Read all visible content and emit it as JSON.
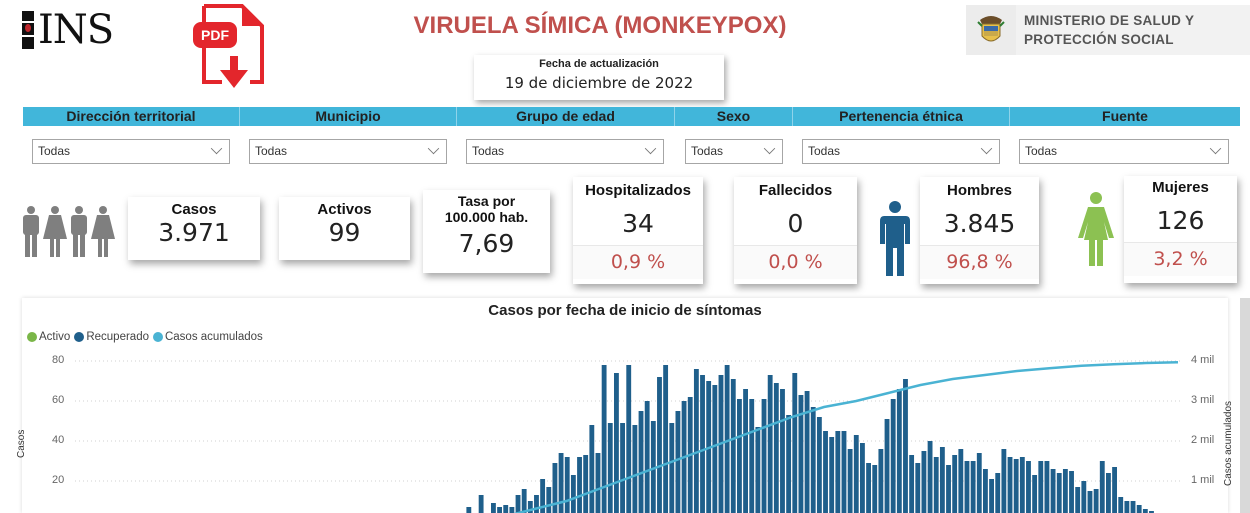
{
  "header": {
    "logo_text": "INS",
    "title": "VIRUELA SÍMICA (MONKEYPOX)",
    "pdf_label": "PDF",
    "update_label": "Fecha de actualización",
    "update_date": "19 de diciembre de 2022",
    "ministry_line1": "MINISTERIO DE SALUD Y",
    "ministry_line2": "PROTECCIÓN SOCIAL"
  },
  "filters": [
    {
      "label": "Dirección territorial",
      "value": "Todas"
    },
    {
      "label": "Municipio",
      "value": "Todas"
    },
    {
      "label": "Grupo de edad",
      "value": "Todas"
    },
    {
      "label": "Sexo",
      "value": "Todas"
    },
    {
      "label": "Pertenencia étnica",
      "value": "Todas"
    },
    {
      "label": "Fuente",
      "value": "Todas"
    }
  ],
  "kpis": {
    "casos": {
      "label": "Casos",
      "value": "3.971"
    },
    "activos": {
      "label": "Activos",
      "value": "99"
    },
    "tasa": {
      "label_line1": "Tasa por",
      "label_line2": "100.000 hab.",
      "value": "7,69"
    },
    "hospitalizados": {
      "label": "Hospitalizados",
      "value": "34",
      "pct": "0,9 %"
    },
    "fallecidos": {
      "label": "Fallecidos",
      "value": "0",
      "pct": "0,0 %"
    },
    "hombres": {
      "label": "Hombres",
      "value": "3.845",
      "pct": "96,8 %"
    },
    "mujeres": {
      "label": "Mujeres",
      "value": "126",
      "pct": "3,2 %"
    }
  },
  "colors": {
    "title_red": "#c0504d",
    "filter_bar": "#41b6da",
    "activo": "#7ab648",
    "recuperado": "#1f5f8b",
    "acumulados": "#4ab3d3",
    "male_icon": "#1f5f8b",
    "female_icon": "#8cc152",
    "people_icon": "#7f7f7f"
  },
  "chart_data": {
    "type": "bar",
    "title": "Casos por fecha de inicio de síntomas",
    "xlabel": "",
    "ylabel": "Casos",
    "y2label": "Casos acumulados",
    "ylim": [
      0,
      80
    ],
    "y2lim": [
      0,
      4000
    ],
    "yticks": [
      "80",
      "60",
      "40",
      "20"
    ],
    "y2ticks": [
      "4 mil",
      "3 mil",
      "2 mil",
      "1 mil"
    ],
    "grid": true,
    "legend_position": "top-left",
    "legend": [
      "Activo",
      "Recuperado",
      "Casos acumulados"
    ],
    "series": [
      {
        "name": "Recuperado",
        "type": "bar",
        "values": [
          1,
          0,
          0,
          0,
          0,
          2,
          0,
          1,
          1,
          1,
          2,
          1,
          0,
          0,
          0,
          0,
          7,
          2,
          13,
          3,
          9,
          7,
          8,
          7,
          13,
          16,
          10,
          13,
          21,
          17,
          29,
          34,
          32,
          23,
          32,
          33,
          48,
          34,
          78,
          49,
          74,
          49,
          78,
          48,
          55,
          60,
          50,
          72,
          78,
          49,
          55,
          60,
          62,
          76,
          73,
          70,
          68,
          73,
          78,
          71,
          61,
          66,
          61,
          47,
          61,
          73,
          69,
          66,
          53,
          74,
          63,
          65,
          57,
          52,
          45,
          42,
          45,
          45,
          36,
          43,
          39,
          29,
          28,
          36,
          51,
          61,
          66,
          71,
          33,
          29,
          35,
          40,
          32,
          37,
          28,
          33,
          36,
          30,
          30,
          34,
          26,
          21,
          24,
          36,
          32,
          31,
          32,
          30,
          23,
          30,
          30,
          26,
          24,
          26,
          25,
          17,
          20,
          15,
          16,
          30,
          24,
          27,
          12,
          10,
          10,
          8,
          6,
          5,
          4,
          3,
          2,
          2
        ],
        "note": "approximate daily counts read from bar heights"
      },
      {
        "name": "Activo",
        "type": "bar",
        "values": [
          3,
          2,
          2,
          1,
          2,
          1,
          1,
          2,
          1,
          1,
          2
        ]
      },
      {
        "name": "Casos acumulados",
        "type": "line",
        "values": [
          0,
          100,
          300,
          500,
          800,
          1100,
          1400,
          1700,
          2000,
          2300,
          2600,
          2850,
          3000,
          3200,
          3400,
          3550,
          3650,
          3750,
          3820,
          3880,
          3920,
          3950,
          3971
        ]
      }
    ]
  },
  "scrollbar": {
    "visible": true
  }
}
